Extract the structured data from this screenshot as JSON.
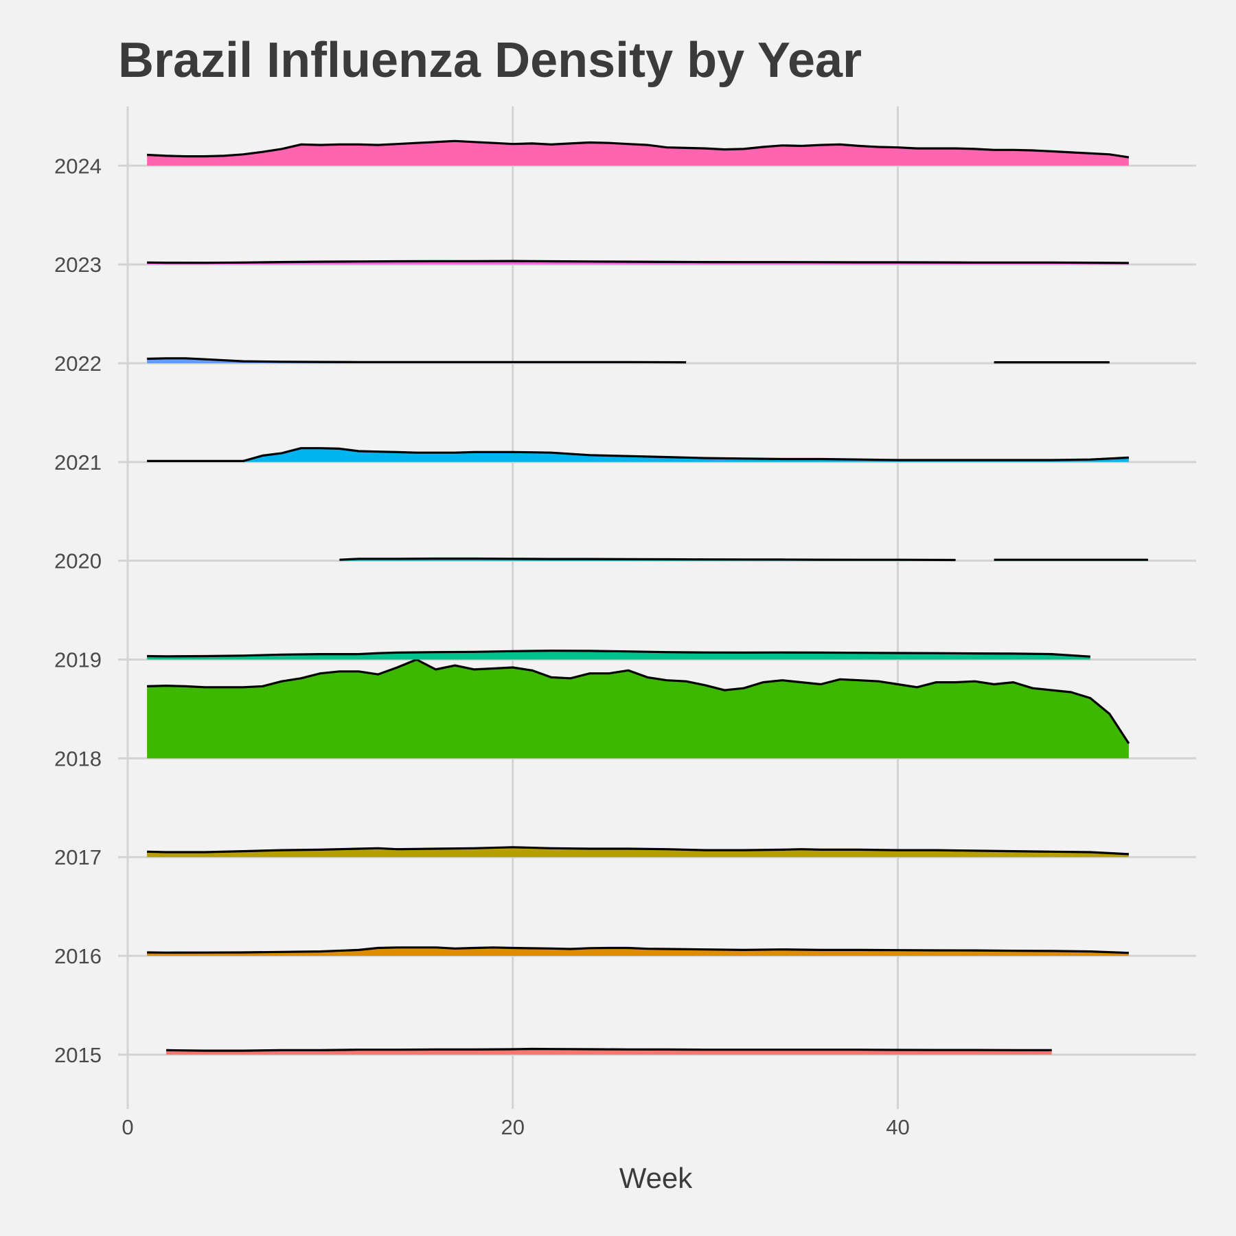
{
  "chart_data": {
    "type": "area",
    "title": "Brazil Influenza Density by Year",
    "xlabel": "Week",
    "ylabel": "",
    "xlim": [
      -0.5,
      55.5
    ],
    "ylim": [
      2014.45,
      2024.6
    ],
    "x_ticks": [
      0,
      20,
      40
    ],
    "x_tick_labels": [
      "0",
      "20",
      "40"
    ],
    "y_ticks": [
      2015,
      2016,
      2017,
      2018,
      2019,
      2020,
      2021,
      2022,
      2023,
      2024
    ],
    "y_tick_labels": [
      "2015",
      "2016",
      "2017",
      "2018",
      "2019",
      "2020",
      "2021",
      "2022",
      "2023",
      "2024"
    ],
    "grid": true,
    "legend": "none",
    "series": [
      {
        "name": "2015",
        "baseline": 2015,
        "color": "#F8766D",
        "segments": [
          {
            "x": [
              2,
              4,
              6,
              8,
              10,
              12,
              14,
              16,
              18,
              20,
              21,
              22,
              24,
              26,
              28,
              30,
              32,
              34,
              36,
              38,
              40,
              42,
              44,
              46,
              48
            ],
            "y": [
              0.045,
              0.04,
              0.04,
              0.045,
              0.045,
              0.05,
              0.05,
              0.052,
              0.052,
              0.055,
              0.058,
              0.057,
              0.055,
              0.053,
              0.052,
              0.05,
              0.05,
              0.05,
              0.05,
              0.05,
              0.048,
              0.047,
              0.047,
              0.046,
              0.045
            ]
          }
        ]
      },
      {
        "name": "2016",
        "baseline": 2016,
        "color": "#DE8C00",
        "segments": [
          {
            "x": [
              1,
              2,
              4,
              6,
              8,
              10,
              12,
              13,
              14,
              16,
              17,
              18,
              19,
              20,
              22,
              23,
              24,
              25,
              26,
              27,
              28,
              30,
              32,
              34,
              36,
              38,
              40,
              42,
              44,
              46,
              48,
              50,
              52
            ],
            "y": [
              0.035,
              0.033,
              0.034,
              0.035,
              0.04,
              0.045,
              0.06,
              0.08,
              0.085,
              0.085,
              0.075,
              0.08,
              0.085,
              0.08,
              0.075,
              0.07,
              0.078,
              0.08,
              0.08,
              0.072,
              0.07,
              0.065,
              0.06,
              0.065,
              0.06,
              0.06,
              0.058,
              0.056,
              0.055,
              0.052,
              0.05,
              0.045,
              0.03
            ]
          }
        ]
      },
      {
        "name": "2017",
        "baseline": 2017,
        "color": "#B79F00",
        "segments": [
          {
            "x": [
              1,
              2,
              4,
              6,
              8,
              10,
              12,
              13,
              14,
              16,
              18,
              20,
              22,
              24,
              26,
              28,
              30,
              32,
              34,
              35,
              36,
              38,
              40,
              42,
              44,
              46,
              48,
              50,
              52
            ],
            "y": [
              0.055,
              0.05,
              0.05,
              0.06,
              0.07,
              0.075,
              0.085,
              0.09,
              0.08,
              0.085,
              0.09,
              0.1,
              0.09,
              0.085,
              0.085,
              0.08,
              0.07,
              0.07,
              0.075,
              0.08,
              0.075,
              0.075,
              0.07,
              0.07,
              0.065,
              0.06,
              0.055,
              0.05,
              0.03
            ]
          }
        ]
      },
      {
        "name": "2018",
        "baseline": 2018,
        "color": "#3DB700",
        "segments": [
          {
            "x": [
              1,
              2,
              3,
              4,
              5,
              6,
              7,
              8,
              9,
              10,
              11,
              12,
              13,
              14,
              15,
              16,
              17,
              18,
              19,
              20,
              21,
              22,
              23,
              24,
              25,
              26,
              27,
              28,
              29,
              30,
              31,
              32,
              33,
              34,
              35,
              36,
              37,
              38,
              39,
              40,
              41,
              42,
              43,
              44,
              45,
              46,
              47,
              48,
              49,
              50,
              51,
              52
            ],
            "y": [
              0.73,
              0.735,
              0.73,
              0.72,
              0.72,
              0.72,
              0.73,
              0.78,
              0.81,
              0.86,
              0.88,
              0.88,
              0.85,
              0.92,
              1.0,
              0.9,
              0.94,
              0.9,
              0.91,
              0.92,
              0.89,
              0.82,
              0.81,
              0.86,
              0.86,
              0.89,
              0.82,
              0.79,
              0.78,
              0.74,
              0.69,
              0.71,
              0.77,
              0.79,
              0.77,
              0.75,
              0.8,
              0.79,
              0.78,
              0.75,
              0.72,
              0.77,
              0.77,
              0.78,
              0.75,
              0.77,
              0.71,
              0.69,
              0.67,
              0.61,
              0.45,
              0.15
            ]
          }
        ]
      },
      {
        "name": "2019",
        "baseline": 2019,
        "color": "#00C08B",
        "segments": [
          {
            "x": [
              1,
              2,
              4,
              6,
              8,
              10,
              12,
              13,
              14,
              16,
              18,
              20,
              22,
              24,
              26,
              28,
              30,
              32,
              34,
              36,
              38,
              40,
              42,
              44,
              46,
              48,
              50
            ],
            "y": [
              0.035,
              0.033,
              0.035,
              0.04,
              0.05,
              0.055,
              0.055,
              0.065,
              0.07,
              0.075,
              0.078,
              0.085,
              0.09,
              0.088,
              0.082,
              0.075,
              0.072,
              0.07,
              0.072,
              0.07,
              0.068,
              0.066,
              0.065,
              0.062,
              0.06,
              0.055,
              0.03
            ]
          }
        ]
      },
      {
        "name": "2020",
        "baseline": 2020,
        "color": "#00BFC4",
        "segments": [
          {
            "x": [
              11,
              12,
              14,
              16,
              18,
              20,
              22,
              24,
              26,
              28,
              30,
              32,
              34,
              36,
              38,
              40,
              43
            ],
            "y": [
              0.01,
              0.02,
              0.02,
              0.022,
              0.022,
              0.02,
              0.018,
              0.018,
              0.016,
              0.015,
              0.014,
              0.013,
              0.012,
              0.011,
              0.01,
              0.01,
              0.008
            ]
          },
          {
            "x": [
              45,
              48,
              50,
              53
            ],
            "y": [
              0.01,
              0.01,
              0.01,
              0.01
            ]
          }
        ]
      },
      {
        "name": "2021",
        "baseline": 2021,
        "color": "#00B4F0",
        "segments": [
          {
            "x": [
              1,
              2,
              4,
              6,
              7,
              8,
              9,
              10,
              11,
              12,
              13,
              14,
              15,
              16,
              17,
              18,
              19,
              20,
              21,
              22,
              24,
              26,
              28,
              30,
              32,
              34,
              36,
              38,
              40,
              42,
              44,
              46,
              48,
              50,
              52
            ],
            "y": [
              0.01,
              0.01,
              0.01,
              0.01,
              0.065,
              0.09,
              0.14,
              0.14,
              0.135,
              0.11,
              0.105,
              0.1,
              0.095,
              0.095,
              0.095,
              0.1,
              0.1,
              0.1,
              0.098,
              0.095,
              0.07,
              0.06,
              0.05,
              0.04,
              0.035,
              0.03,
              0.03,
              0.025,
              0.02,
              0.02,
              0.02,
              0.02,
              0.02,
              0.025,
              0.045
            ]
          }
        ]
      },
      {
        "name": "2022",
        "baseline": 2022,
        "color": "#619CFF",
        "segments": [
          {
            "x": [
              1,
              2,
              3,
              4,
              6,
              8,
              10,
              12,
              14,
              16,
              18,
              20,
              22,
              24,
              26,
              29
            ],
            "y": [
              0.045,
              0.05,
              0.05,
              0.04,
              0.02,
              0.015,
              0.013,
              0.012,
              0.012,
              0.012,
              0.012,
              0.012,
              0.012,
              0.012,
              0.012,
              0.01
            ]
          },
          {
            "x": [
              45,
              48,
              51
            ],
            "y": [
              0.01,
              0.01,
              0.01
            ]
          }
        ]
      },
      {
        "name": "2023",
        "baseline": 2023,
        "color": "#F564E3",
        "segments": [
          {
            "x": [
              1,
              2,
              4,
              6,
              8,
              10,
              12,
              14,
              16,
              18,
              20,
              22,
              24,
              26,
              28,
              30,
              32,
              34,
              36,
              38,
              40,
              42,
              44,
              46,
              48,
              50,
              52
            ],
            "y": [
              0.02,
              0.018,
              0.017,
              0.02,
              0.025,
              0.028,
              0.03,
              0.032,
              0.033,
              0.034,
              0.035,
              0.032,
              0.03,
              0.028,
              0.026,
              0.025,
              0.024,
              0.024,
              0.023,
              0.022,
              0.022,
              0.021,
              0.02,
              0.02,
              0.02,
              0.018,
              0.015
            ]
          }
        ]
      },
      {
        "name": "2024",
        "baseline": 2024,
        "color": "#FF64B0",
        "segments": [
          {
            "x": [
              1,
              2,
              3,
              4,
              5,
              6,
              7,
              8,
              9,
              10,
              11,
              12,
              13,
              14,
              15,
              16,
              17,
              18,
              19,
              20,
              21,
              22,
              23,
              24,
              25,
              26,
              27,
              28,
              29,
              30,
              31,
              32,
              33,
              34,
              35,
              36,
              37,
              38,
              39,
              40,
              41,
              42,
              43,
              44,
              45,
              46,
              47,
              48,
              49,
              50,
              51,
              52
            ],
            "y": [
              0.11,
              0.1,
              0.095,
              0.095,
              0.1,
              0.115,
              0.14,
              0.17,
              0.215,
              0.21,
              0.215,
              0.215,
              0.21,
              0.22,
              0.23,
              0.24,
              0.25,
              0.24,
              0.23,
              0.22,
              0.225,
              0.215,
              0.225,
              0.235,
              0.23,
              0.22,
              0.21,
              0.185,
              0.18,
              0.175,
              0.165,
              0.17,
              0.19,
              0.205,
              0.2,
              0.21,
              0.215,
              0.2,
              0.19,
              0.185,
              0.175,
              0.175,
              0.175,
              0.17,
              0.16,
              0.16,
              0.155,
              0.145,
              0.135,
              0.125,
              0.115,
              0.085
            ]
          }
        ]
      }
    ]
  }
}
